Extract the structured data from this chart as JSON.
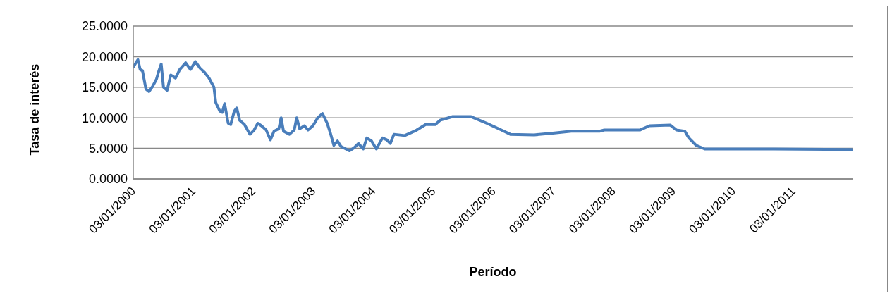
{
  "chart_data": {
    "type": "line",
    "xlabel": "Período",
    "ylabel": "Tasa de interés",
    "x": [
      "2000-01-03",
      "2000-01-31",
      "2000-02-14",
      "2000-02-28",
      "2000-03-20",
      "2000-04-08",
      "2000-05-01",
      "2000-05-23",
      "2000-06-07",
      "2000-06-21",
      "2000-07-05",
      "2000-07-27",
      "2000-08-18",
      "2000-09-16",
      "2000-10-12",
      "2000-11-17",
      "2000-12-16",
      "2001-01-15",
      "2001-02-13",
      "2001-03-13",
      "2001-04-08",
      "2001-05-08",
      "2001-05-19",
      "2001-06-13",
      "2001-06-28",
      "2001-07-12",
      "2001-08-03",
      "2001-08-18",
      "2001-09-09",
      "2001-09-24",
      "2001-10-12",
      "2001-11-10",
      "2001-12-13",
      "2002-01-08",
      "2002-01-30",
      "2002-02-21",
      "2002-03-22",
      "2002-04-17",
      "2002-05-09",
      "2002-06-07",
      "2002-06-21",
      "2002-07-06",
      "2002-08-11",
      "2002-09-09",
      "2002-09-24",
      "2002-10-12",
      "2002-11-10",
      "2002-12-02",
      "2003-01-01",
      "2003-01-30",
      "2003-02-28",
      "2003-03-29",
      "2003-04-16",
      "2003-05-08",
      "2003-05-30",
      "2003-06-21",
      "2003-08-11",
      "2003-09-09",
      "2003-10-05",
      "2003-11-03",
      "2003-11-25",
      "2003-12-24",
      "2004-01-22",
      "2004-02-28",
      "2004-03-25",
      "2004-04-16",
      "2004-05-08",
      "2004-07-13",
      "2004-09-24",
      "2004-11-17",
      "2005-01-15",
      "2005-02-13",
      "2005-05-01",
      "2005-08-18",
      "2005-11-25",
      "2006-02-21",
      "2006-04-17",
      "2006-09-09",
      "2007-01-01",
      "2007-04-23",
      "2007-10-12",
      "2007-11-10",
      "2008-01-22",
      "2008-06-13",
      "2008-08-11",
      "2008-12-16",
      "2009-01-22",
      "2009-03-14",
      "2009-04-08",
      "2009-05-22",
      "2009-07-13",
      "2010-09-09",
      "2011-12-24"
    ],
    "series": [
      {
        "color": "#4a7ebb",
        "values": [
          18.3,
          19.5,
          17.9,
          17.7,
          14.7,
          14.3,
          15.2,
          16.3,
          17.7,
          18.8,
          15.0,
          14.5,
          17.0,
          16.5,
          17.9,
          19.0,
          17.9,
          19.2,
          18.1,
          17.4,
          16.5,
          15.0,
          12.5,
          11.1,
          10.9,
          12.3,
          9.1,
          8.9,
          11.1,
          11.6,
          9.6,
          8.9,
          7.3,
          8.0,
          9.1,
          8.7,
          8.0,
          6.4,
          7.8,
          8.2,
          10.0,
          7.8,
          7.3,
          8.0,
          10.0,
          8.2,
          8.7,
          8.0,
          8.7,
          10.0,
          10.7,
          9.1,
          7.6,
          5.5,
          6.2,
          5.3,
          4.6,
          5.1,
          5.8,
          4.9,
          6.7,
          6.2,
          4.9,
          6.7,
          6.4,
          5.8,
          7.3,
          7.1,
          8.0,
          8.9,
          8.9,
          9.6,
          10.2,
          10.2,
          9.1,
          8.0,
          7.3,
          7.2,
          7.5,
          7.8,
          7.8,
          8.0,
          8.0,
          8.0,
          8.7,
          8.8,
          8.0,
          7.8,
          6.7,
          5.5,
          4.9,
          4.9,
          4.8
        ]
      }
    ],
    "xlim": [
      "2000-01-03",
      "2011-12-30"
    ],
    "xticks": [
      {
        "value": "2000-01-03",
        "label": "03/01/2000"
      },
      {
        "value": "2001-01-03",
        "label": "03/01/2001"
      },
      {
        "value": "2002-01-03",
        "label": "03/01/2002"
      },
      {
        "value": "2003-01-03",
        "label": "03/01/2003"
      },
      {
        "value": "2004-01-03",
        "label": "03/01/2004"
      },
      {
        "value": "2005-01-03",
        "label": "03/01/2005"
      },
      {
        "value": "2006-01-03",
        "label": "03/01/2006"
      },
      {
        "value": "2007-01-03",
        "label": "03/01/2007"
      },
      {
        "value": "2008-01-03",
        "label": "03/01/2008"
      },
      {
        "value": "2009-01-03",
        "label": "03/01/2009"
      },
      {
        "value": "2010-01-03",
        "label": "03/01/2010"
      },
      {
        "value": "2011-01-03",
        "label": "03/01/2011"
      }
    ],
    "ylim": [
      0,
      25
    ],
    "yticks": [
      {
        "value": 0,
        "label": "0.0000"
      },
      {
        "value": 5,
        "label": "5.0000"
      },
      {
        "value": 10,
        "label": "10.0000"
      },
      {
        "value": 15,
        "label": "15.0000"
      },
      {
        "value": 20,
        "label": "20.0000"
      },
      {
        "value": 25,
        "label": "25.0000"
      }
    ],
    "grid": "y",
    "legend": false,
    "marker": "none",
    "line_style": "solid"
  }
}
